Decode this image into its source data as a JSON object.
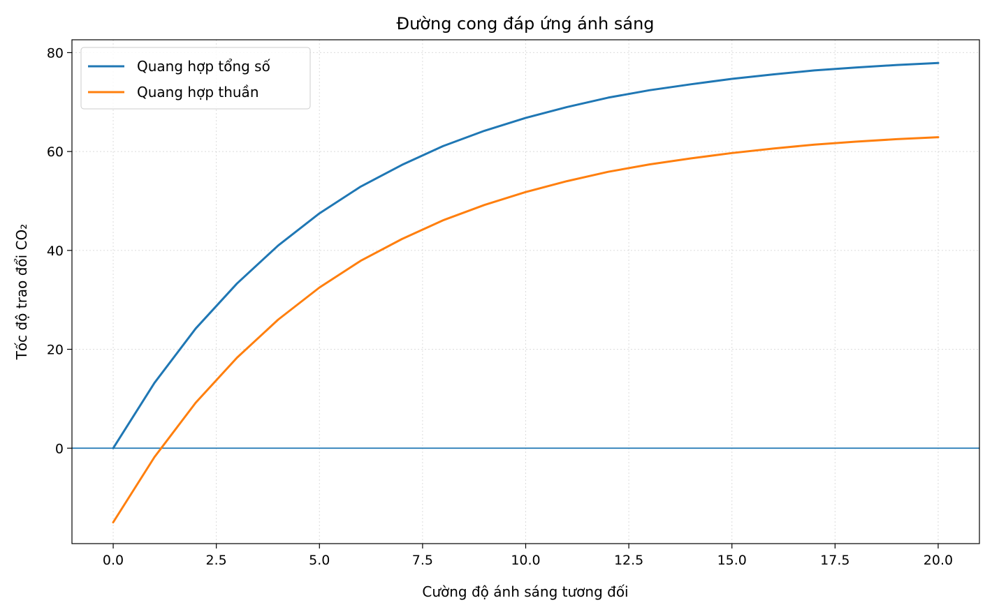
{
  "chart_data": {
    "type": "line",
    "title": "Đường cong đáp ứng ánh sáng",
    "xlabel": "Cường độ ánh sáng tương đối",
    "ylabel": "Tốc độ trao đổi CO₂",
    "xlim": [
      -1,
      21
    ],
    "ylim": [
      -19.3,
      82.6
    ],
    "xticks": [
      "0.0",
      "2.5",
      "5.0",
      "7.5",
      "10.0",
      "12.5",
      "15.0",
      "17.5",
      "20.0"
    ],
    "yticks": [
      "0",
      "20",
      "40",
      "60",
      "80"
    ],
    "grid": true,
    "legend_position": "upper-left",
    "reference_line": {
      "y": 0,
      "color": "#1f77b4"
    },
    "x": [
      0,
      1,
      2,
      3,
      4,
      5,
      6,
      7,
      8,
      9,
      10,
      11,
      12,
      13,
      14,
      15,
      16,
      17,
      18,
      19,
      20
    ],
    "series": [
      {
        "name": "Quang hợp tổng số",
        "color": "#1f77b4",
        "values": [
          0,
          13.2,
          24.2,
          33.3,
          41.0,
          47.5,
          52.9,
          57.3,
          61.1,
          64.2,
          66.8,
          69.0,
          70.9,
          72.4,
          73.6,
          74.7,
          75.6,
          76.4,
          77.0,
          77.5,
          77.9
        ]
      },
      {
        "name": "Quang hợp thuần",
        "color": "#ff7f0e",
        "values": [
          -15,
          -1.8,
          9.2,
          18.3,
          26.0,
          32.5,
          37.9,
          42.3,
          46.1,
          49.2,
          51.8,
          54.0,
          55.9,
          57.4,
          58.6,
          59.7,
          60.6,
          61.4,
          62.0,
          62.5,
          62.9
        ]
      }
    ]
  }
}
